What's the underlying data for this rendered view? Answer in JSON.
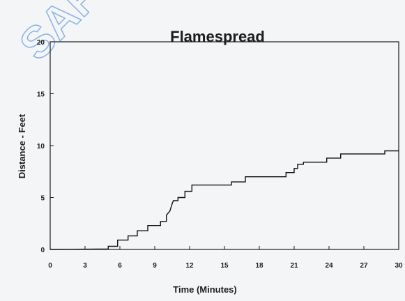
{
  "watermark": "SAFE",
  "colors": {
    "background": "#f4f5f7",
    "axis": "#1c1c1c",
    "line": "#111111",
    "watermark": "#2f7ad6"
  },
  "chart_data": {
    "type": "line",
    "title": "Flamespread",
    "xlabel": "Time (Minutes)",
    "ylabel": "Distance - Feet",
    "xlim": [
      0,
      30
    ],
    "ylim": [
      0,
      20
    ],
    "xticks": [
      0,
      3,
      6,
      9,
      12,
      15,
      18,
      21,
      24,
      27,
      30
    ],
    "yticks": [
      0,
      5,
      10,
      15,
      20
    ],
    "grid": false,
    "legend": "none",
    "series": [
      {
        "step": true,
        "points": [
          [
            0,
            0
          ],
          [
            5.0,
            0.05
          ],
          [
            5.0,
            0.3
          ],
          [
            5.8,
            0.3
          ],
          [
            5.8,
            0.9
          ],
          [
            6.7,
            0.9
          ],
          [
            6.7,
            1.3
          ],
          [
            7.5,
            1.3
          ],
          [
            7.5,
            1.8
          ],
          [
            8.4,
            1.8
          ],
          [
            8.4,
            2.3
          ],
          [
            9.5,
            2.3
          ],
          [
            9.5,
            2.7
          ],
          [
            10.0,
            2.7
          ],
          [
            10.0,
            3.3
          ],
          [
            10.3,
            3.7
          ],
          [
            10.5,
            4.4
          ],
          [
            10.6,
            4.7
          ],
          [
            11.0,
            4.7
          ],
          [
            11.0,
            5.0
          ],
          [
            11.6,
            5.0
          ],
          [
            11.6,
            5.6
          ],
          [
            12.2,
            5.6
          ],
          [
            12.2,
            6.2
          ],
          [
            15.6,
            6.2
          ],
          [
            15.6,
            6.5
          ],
          [
            16.8,
            6.5
          ],
          [
            16.8,
            7.0
          ],
          [
            20.3,
            7.0
          ],
          [
            20.3,
            7.4
          ],
          [
            21.0,
            7.4
          ],
          [
            21.0,
            7.8
          ],
          [
            21.3,
            7.8
          ],
          [
            21.3,
            8.2
          ],
          [
            21.8,
            8.2
          ],
          [
            21.8,
            8.4
          ],
          [
            23.8,
            8.4
          ],
          [
            23.8,
            8.8
          ],
          [
            25.0,
            8.8
          ],
          [
            25.0,
            9.2
          ],
          [
            28.8,
            9.2
          ],
          [
            28.8,
            9.5
          ],
          [
            30,
            9.5
          ]
        ]
      }
    ]
  }
}
